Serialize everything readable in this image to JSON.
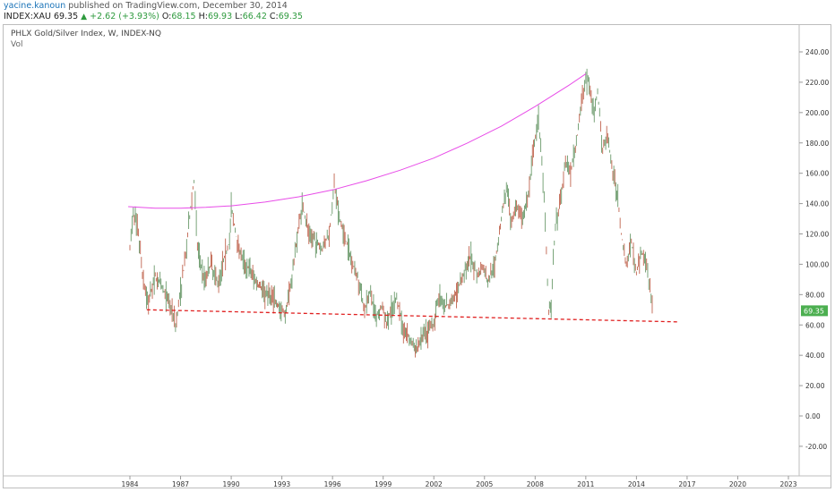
{
  "header": {
    "user": "yacine.kanoun",
    "published": "published on TradingView.com, December 30, 2014",
    "symbol": "INDEX:XAU",
    "last": "69.35",
    "change": "+2.62 (+3.93%)",
    "o_label": "O:",
    "o": "68.15",
    "h_label": "H:",
    "h": "69.93",
    "l_label": "L:",
    "l": "66.42",
    "c_label": "C:",
    "c": "69.35"
  },
  "legend": {
    "title": "PHLX Gold/Silver Index, W, INDEX-NQ",
    "vol": "Vol"
  },
  "colors": {
    "up": "#2e9a3e",
    "candle_up": "#6b9a6b",
    "candle_down": "#c0644f",
    "curve": "#e84ce8",
    "support": "#e02020",
    "last_badge": "#4caf50"
  },
  "chart_data": {
    "type": "line",
    "y_axis": {
      "ticks": [
        "240.00",
        "220.00",
        "200.00",
        "180.00",
        "160.00",
        "140.00",
        "120.00",
        "100.00",
        "80.00",
        "60.00",
        "40.00",
        "20.00",
        "0.00",
        "-20.00"
      ],
      "range": [
        -30,
        250
      ]
    },
    "x_axis": {
      "ticks": [
        "1984",
        "1987",
        "1990",
        "1993",
        "1996",
        "1999",
        "2002",
        "2005",
        "2008",
        "2011",
        "2014",
        "2017",
        "2020",
        "2023"
      ],
      "range": [
        1981.5,
        2024.5
      ]
    },
    "last_price_label": "69.35",
    "series": [
      {
        "points": [
          [
            1984.0,
            110
          ],
          [
            1984.2,
            135
          ],
          [
            1984.5,
            120
          ],
          [
            1984.8,
            88
          ],
          [
            1985.1,
            75
          ],
          [
            1985.5,
            92
          ],
          [
            1985.9,
            85
          ],
          [
            1986.2,
            78
          ],
          [
            1986.5,
            70
          ],
          [
            1986.7,
            60
          ],
          [
            1987.0,
            82
          ],
          [
            1987.3,
            105
          ],
          [
            1987.6,
            138
          ],
          [
            1987.8,
            155
          ],
          [
            1988.0,
            112
          ],
          [
            1988.4,
            90
          ],
          [
            1988.8,
            100
          ],
          [
            1989.2,
            88
          ],
          [
            1989.6,
            105
          ],
          [
            1989.9,
            115
          ],
          [
            1990.0,
            138
          ],
          [
            1990.3,
            118
          ],
          [
            1990.7,
            102
          ],
          [
            1991.0,
            98
          ],
          [
            1991.5,
            88
          ],
          [
            1992.0,
            82
          ],
          [
            1992.5,
            78
          ],
          [
            1992.9,
            70
          ],
          [
            1993.2,
            67
          ],
          [
            1993.6,
            92
          ],
          [
            1993.9,
            118
          ],
          [
            1994.2,
            140
          ],
          [
            1994.6,
            120
          ],
          [
            1995.0,
            115
          ],
          [
            1995.4,
            110
          ],
          [
            1995.8,
            120
          ],
          [
            1996.1,
            152
          ],
          [
            1996.4,
            130
          ],
          [
            1996.8,
            115
          ],
          [
            1997.2,
            100
          ],
          [
            1997.6,
            88
          ],
          [
            1997.9,
            70
          ],
          [
            1998.2,
            82
          ],
          [
            1998.6,
            66
          ],
          [
            1998.9,
            72
          ],
          [
            1999.2,
            62
          ],
          [
            1999.6,
            72
          ],
          [
            1999.8,
            78
          ],
          [
            2000.2,
            58
          ],
          [
            2000.6,
            50
          ],
          [
            2000.9,
            43
          ],
          [
            2001.3,
            52
          ],
          [
            2001.7,
            55
          ],
          [
            2002.0,
            62
          ],
          [
            2002.3,
            80
          ],
          [
            2002.7,
            72
          ],
          [
            2003.0,
            75
          ],
          [
            2003.4,
            82
          ],
          [
            2003.8,
            95
          ],
          [
            2004.2,
            105
          ],
          [
            2004.6,
            92
          ],
          [
            2004.9,
            98
          ],
          [
            2005.2,
            88
          ],
          [
            2005.6,
            100
          ],
          [
            2006.0,
            130
          ],
          [
            2006.3,
            150
          ],
          [
            2006.6,
            125
          ],
          [
            2006.9,
            140
          ],
          [
            2007.2,
            130
          ],
          [
            2007.6,
            145
          ],
          [
            2007.9,
            175
          ],
          [
            2008.2,
            195
          ],
          [
            2008.4,
            170
          ],
          [
            2008.6,
            130
          ],
          [
            2008.8,
            70
          ],
          [
            2008.95,
            75
          ],
          [
            2009.2,
            125
          ],
          [
            2009.5,
            140
          ],
          [
            2009.8,
            168
          ],
          [
            2010.1,
            160
          ],
          [
            2010.5,
            185
          ],
          [
            2010.8,
            210
          ],
          [
            2011.0,
            225
          ],
          [
            2011.2,
            218
          ],
          [
            2011.5,
            200
          ],
          [
            2011.7,
            215
          ],
          [
            2012.0,
            175
          ],
          [
            2012.3,
            185
          ],
          [
            2012.6,
            160
          ],
          [
            2012.9,
            145
          ],
          [
            2013.1,
            120
          ],
          [
            2013.4,
            100
          ],
          [
            2013.7,
            115
          ],
          [
            2014.0,
            95
          ],
          [
            2014.3,
            108
          ],
          [
            2014.6,
            100
          ],
          [
            2014.8,
            85
          ],
          [
            2015.0,
            69.35
          ]
        ]
      }
    ],
    "overlays": {
      "curve": [
        [
          1983.9,
          138
        ],
        [
          1985.5,
          137
        ],
        [
          1987.0,
          137
        ],
        [
          1988.5,
          137.5
        ],
        [
          1990.0,
          138.5
        ],
        [
          1992.0,
          141
        ],
        [
          1994.0,
          144.5
        ],
        [
          1996.0,
          149
        ],
        [
          1998.0,
          155
        ],
        [
          2000.0,
          162
        ],
        [
          2002.0,
          170
        ],
        [
          2004.0,
          180
        ],
        [
          2006.0,
          191
        ],
        [
          2008.0,
          204
        ],
        [
          2010.0,
          218
        ],
        [
          2011.0,
          225.5
        ]
      ],
      "support": [
        [
          1985.0,
          70
        ],
        [
          2016.5,
          62
        ]
      ]
    }
  }
}
